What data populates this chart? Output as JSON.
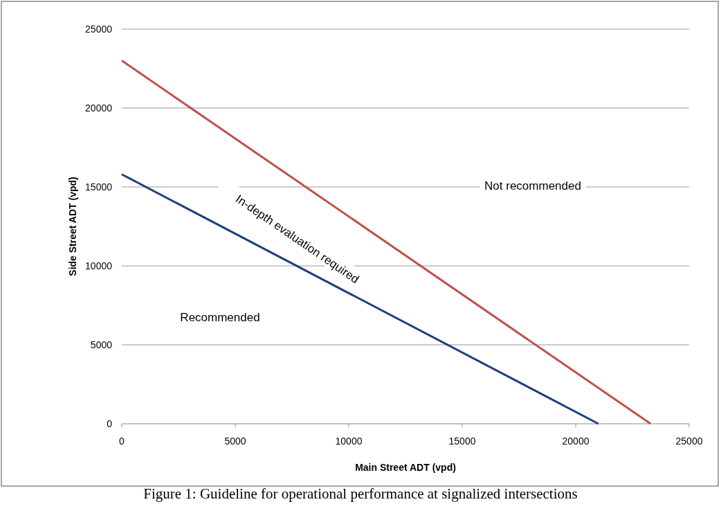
{
  "chart_data": {
    "type": "line",
    "xlabel": "Main Street ADT (vpd)",
    "ylabel": "Side Street ADT (vpd)",
    "xlim": [
      0,
      25000
    ],
    "ylim": [
      0,
      25000
    ],
    "xticks": [
      0,
      5000,
      10000,
      15000,
      20000,
      25000
    ],
    "yticks": [
      0,
      5000,
      10000,
      15000,
      20000,
      25000
    ],
    "grid": "y",
    "marker": "none",
    "series": [
      {
        "color": "#c0504d",
        "x": [
          0,
          23300
        ],
        "values": [
          23000,
          0
        ]
      },
      {
        "color": "#1f3f7a",
        "x": [
          0,
          21000
        ],
        "values": [
          15800,
          0
        ]
      }
    ],
    "annotations": [
      "Not recommended",
      "In-depth evaluation required",
      "Recommended",
      "Figure 1: Guideline for operational performance at signalized intersections"
    ]
  }
}
